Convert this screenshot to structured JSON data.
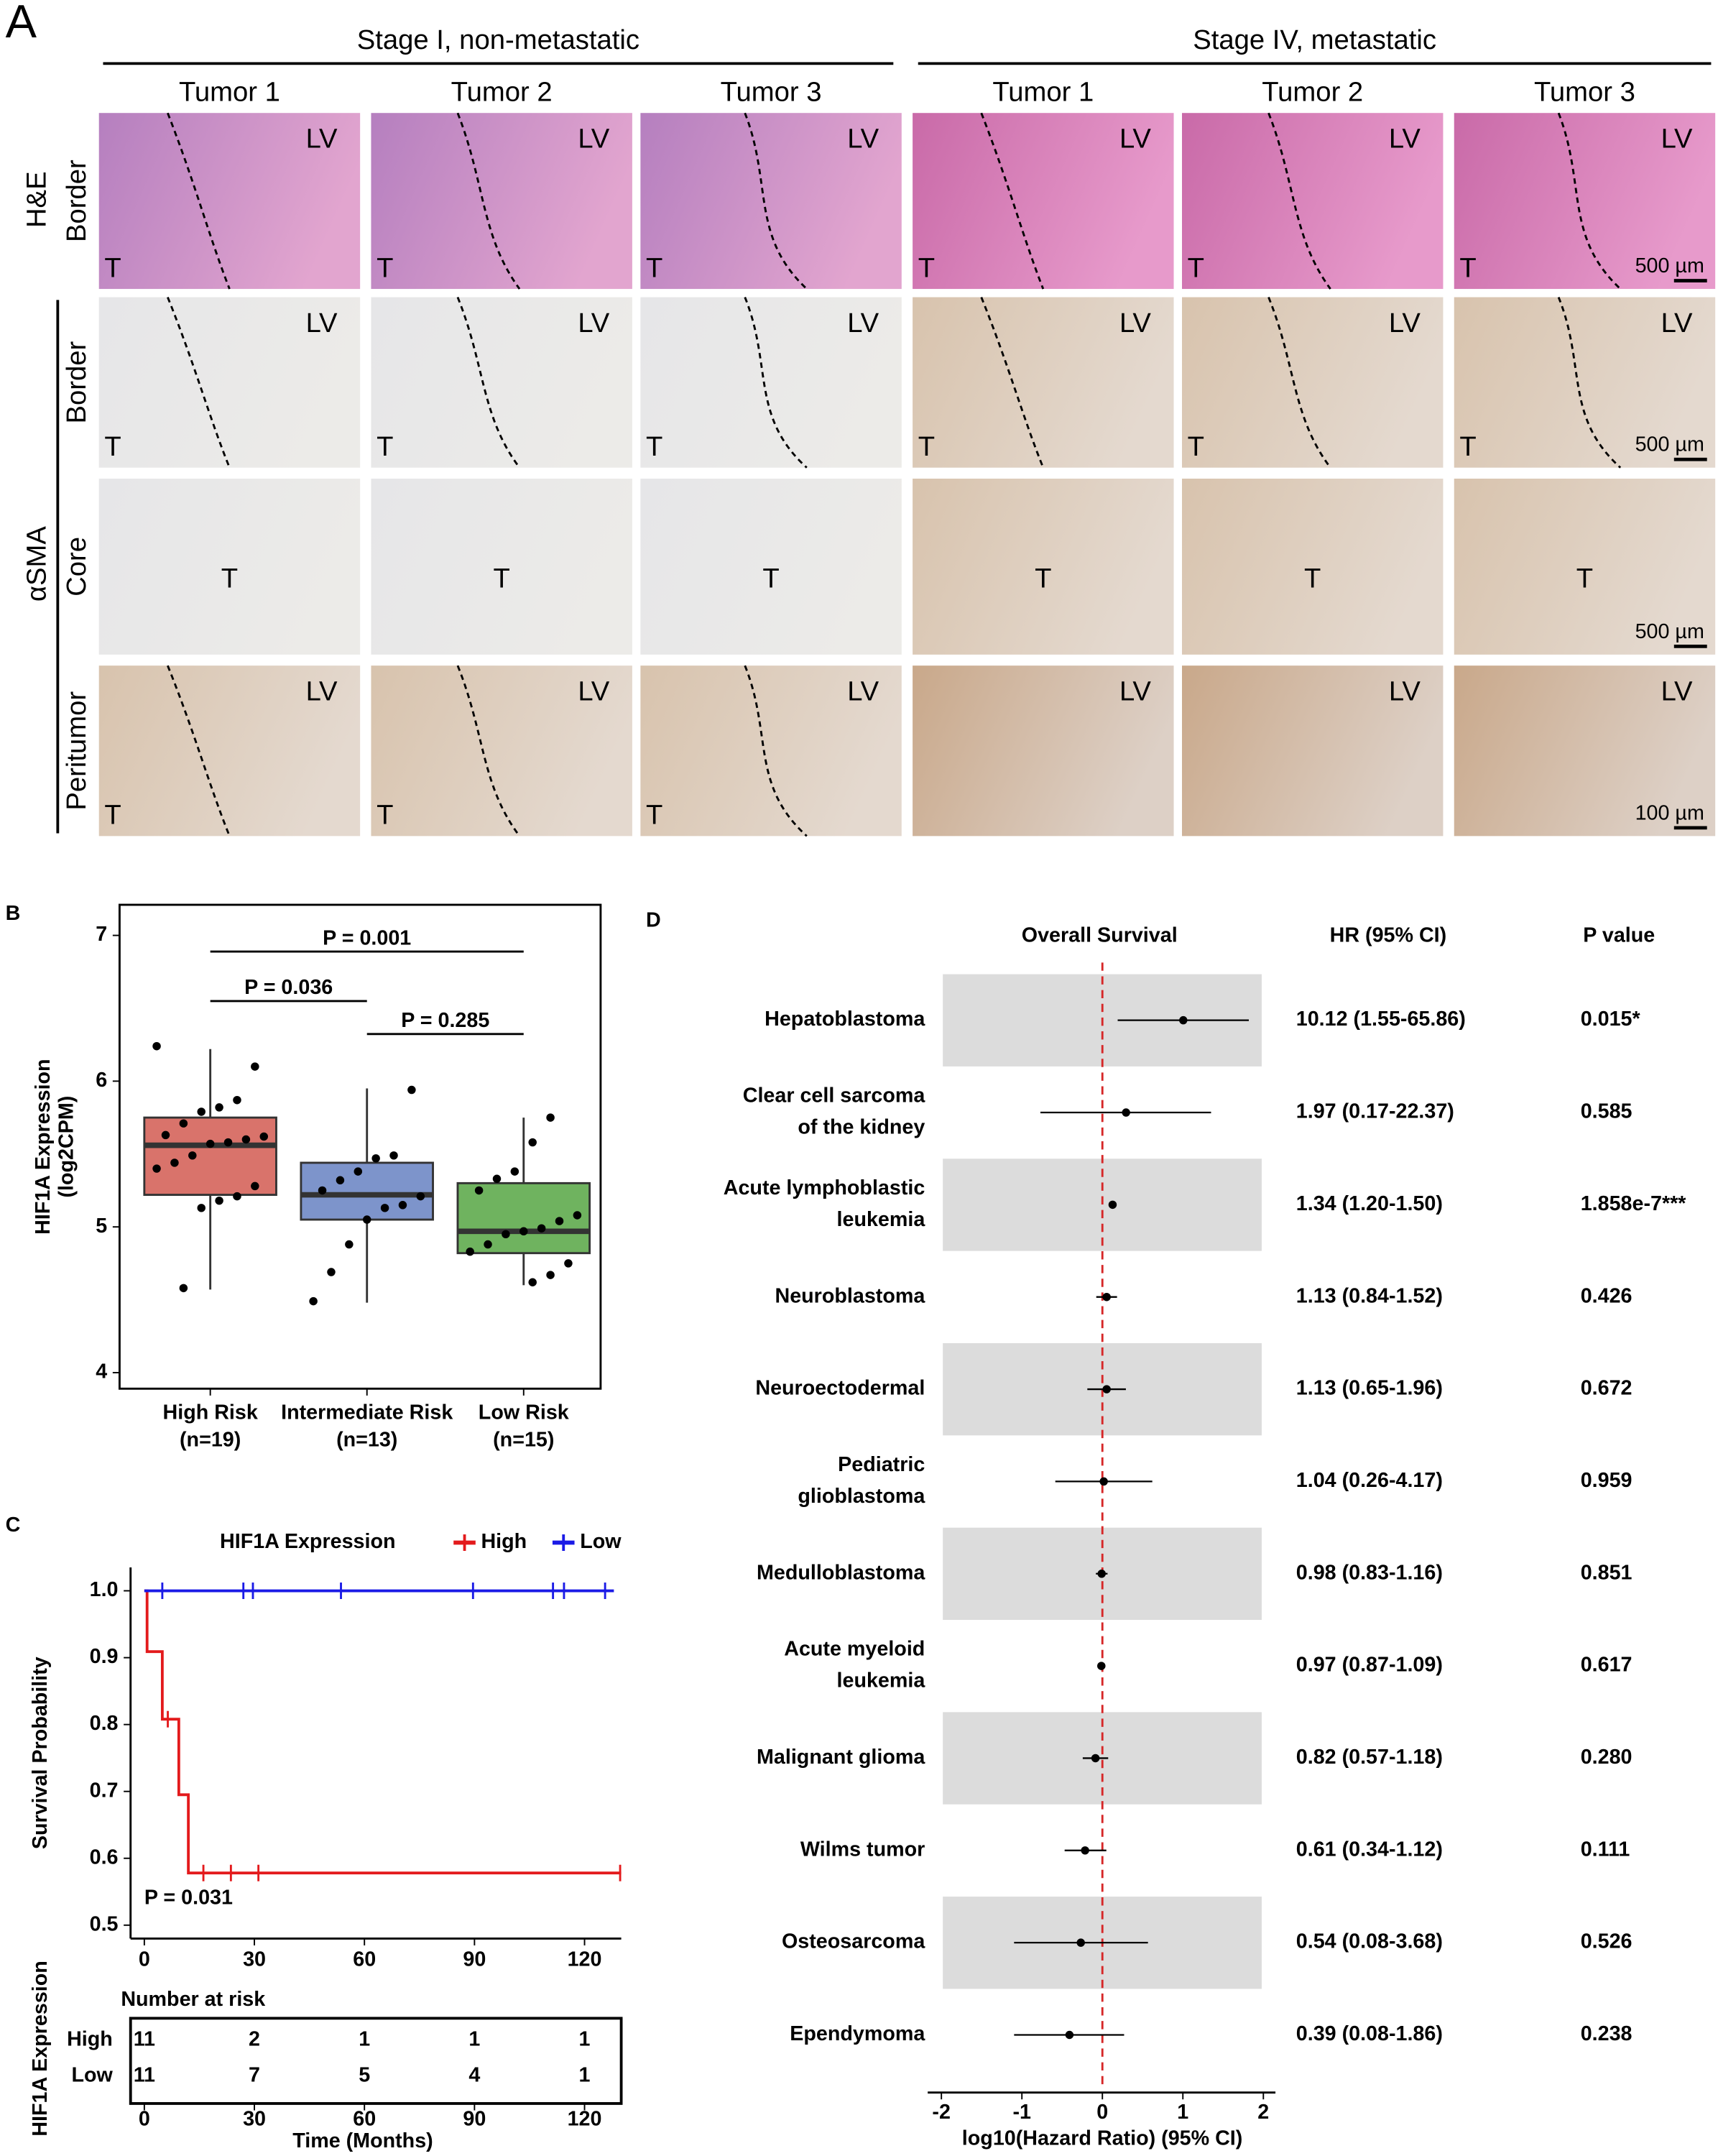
{
  "panel_a": {
    "label": "A",
    "groups": [
      {
        "title": "Stage I, non-metastatic",
        "columns": [
          "Tumor 1",
          "Tumor 2",
          "Tumor 3"
        ]
      },
      {
        "title": "Stage IV, metastatic",
        "columns": [
          "Tumor 1",
          "Tumor 2",
          "Tumor 3"
        ]
      }
    ],
    "stains": [
      {
        "name": "H&E",
        "regions": [
          "Border"
        ]
      },
      {
        "name": "αSMA",
        "regions": [
          "Border",
          "Core",
          "Peritumor"
        ]
      }
    ],
    "liver_label": "LV",
    "tumor_label": "T",
    "scale_bars": [
      "500 µm",
      "500 µm",
      "500 µm",
      "100 µm"
    ]
  },
  "chart_data": [
    {
      "type": "box",
      "panel_label": "B",
      "y_label": [
        "HIF1A Expression",
        "(log2CPM)"
      ],
      "categories": [
        "High Risk",
        "Intermediate Risk",
        "Low Risk"
      ],
      "category_counts": [
        "(n=19)",
        "(n=13)",
        "(n=15)"
      ],
      "colors": [
        "#d9736b",
        "#7d94cb",
        "#6fb35f"
      ],
      "whisker_low": [
        4.57,
        4.48,
        4.6
      ],
      "q1": [
        5.22,
        5.05,
        4.82
      ],
      "median": [
        5.56,
        5.22,
        4.97
      ],
      "q3": [
        5.75,
        5.44,
        5.3
      ],
      "whisker_high": [
        6.22,
        5.95,
        5.75
      ],
      "points": [
        [
          6.24,
          6.1,
          5.87,
          5.82,
          5.79,
          5.71,
          5.63,
          5.62,
          5.6,
          5.58,
          5.57,
          5.49,
          5.44,
          5.4,
          5.28,
          5.21,
          5.18,
          5.13,
          4.58
        ],
        [
          5.94,
          5.49,
          5.47,
          5.38,
          5.32,
          5.25,
          5.21,
          5.15,
          5.13,
          5.05,
          4.88,
          4.69,
          4.49
        ],
        [
          5.75,
          5.58,
          5.38,
          5.33,
          5.25,
          5.08,
          5.04,
          4.99,
          4.97,
          4.95,
          4.88,
          4.83,
          4.75,
          4.67,
          4.62
        ]
      ],
      "ylim": [
        3.89,
        7.21
      ],
      "yticks": [
        4,
        5,
        6,
        7
      ],
      "comparisons": [
        "P = 0.001",
        "P = 0.036",
        "P = 0.285"
      ]
    },
    {
      "type": "step",
      "panel_label": "C",
      "legend_title": "HIF1A Expression",
      "series": [
        {
          "name": "High",
          "color": "#e31a1c",
          "x": [
            0,
            0.75,
            4.9,
            9.4,
            12,
            130
          ],
          "values": [
            1,
            0.909,
            0.808,
            0.695,
            0.578,
            0.578
          ],
          "censor_x": [
            6.4,
            16.1,
            23.6,
            31.1,
            129.7
          ],
          "censor_values": [
            0.808,
            0.578,
            0.578,
            0.578,
            0.578
          ]
        },
        {
          "name": "Low",
          "color": "#1a1ae6",
          "x": [
            0,
            128
          ],
          "values": [
            1,
            1
          ],
          "censor_x": [
            4.9,
            27,
            29.6,
            53.6,
            89.6,
            111.4,
            114.4,
            125.6
          ],
          "censor_values": [
            1,
            1,
            1,
            1,
            1,
            1,
            1,
            1
          ]
        }
      ],
      "xlim": [
        -3.75,
        130
      ],
      "xticks": [
        0,
        30,
        60,
        90,
        120
      ],
      "ylim": [
        0.48,
        1.035
      ],
      "yticks": [
        0.5,
        0.6,
        0.7,
        0.8,
        0.9,
        {
          "value": 1.0,
          "label": "1.0"
        }
      ],
      "y_label": "Survival Probability",
      "x_label": "Time (Months)",
      "p_label": "P = 0.031",
      "risk_table": {
        "title": "Number at risk",
        "y_label": "HIF1A Expression",
        "series": [
          {
            "name": "High",
            "values": [
              11,
              2,
              1,
              1,
              1
            ]
          },
          {
            "name": "Low",
            "values": [
              11,
              7,
              5,
              4,
              1
            ]
          }
        ]
      }
    },
    {
      "type": "forest",
      "panel_label": "D",
      "column_headers": [
        "Overall Survival",
        "HR (95% CI)",
        "P value"
      ],
      "categories": [
        [
          "Hepatoblastoma"
        ],
        [
          "Clear cell sarcoma",
          "of the kidney"
        ],
        [
          "Acute lymphoblastic",
          "leukemia"
        ],
        [
          "Neuroblastoma"
        ],
        [
          "Neuroectodermal"
        ],
        [
          "Pediatric",
          "glioblastoma"
        ],
        [
          "Medulloblastoma"
        ],
        [
          "Acute myeloid",
          "leukemia"
        ],
        [
          "Malignant glioma"
        ],
        [
          "Wilms tumor"
        ],
        [
          "Osteosarcoma"
        ],
        [
          "Ependymoma"
        ]
      ],
      "values": [
        1.005,
        0.294,
        0.127,
        0.053,
        0.053,
        0.017,
        -0.009,
        -0.013,
        -0.086,
        -0.215,
        -0.268,
        -0.409
      ],
      "ci_low": [
        0.19,
        -0.77,
        0.079,
        -0.076,
        -0.187,
        -0.585,
        -0.081,
        -0.06,
        -0.244,
        -0.469,
        -1.097,
        -1.097
      ],
      "ci_high": [
        1.819,
        1.35,
        0.176,
        0.182,
        0.292,
        0.62,
        0.064,
        0.037,
        0.072,
        0.049,
        0.566,
        0.27
      ],
      "hr_labels": [
        "10.12 (1.55-65.86)",
        "1.97 (0.17-22.37)",
        "1.34 (1.20-1.50)",
        "1.13 (0.84-1.52)",
        "1.13 (0.65-1.96)",
        "1.04 (0.26-4.17)",
        "0.98 (0.83-1.16)",
        "0.97 (0.87-1.09)",
        "0.82 (0.57-1.18)",
        "0.61 (0.34-1.12)",
        "0.54 (0.08-3.68)",
        "0.39 (0.08-1.86)"
      ],
      "p_values": [
        "0.015*",
        "0.585",
        "1.858e-7***",
        "0.426",
        "0.672",
        "0.959",
        "0.851",
        "0.617",
        "0.280",
        "0.111",
        "0.526",
        "0.238"
      ],
      "xlim": [
        -2.17,
        2.15
      ],
      "xticks": [
        -2,
        -1,
        0,
        1,
        2
      ],
      "reference_line": 0,
      "x_label": "log10(Hazard Ratio) (95% CI)"
    }
  ]
}
